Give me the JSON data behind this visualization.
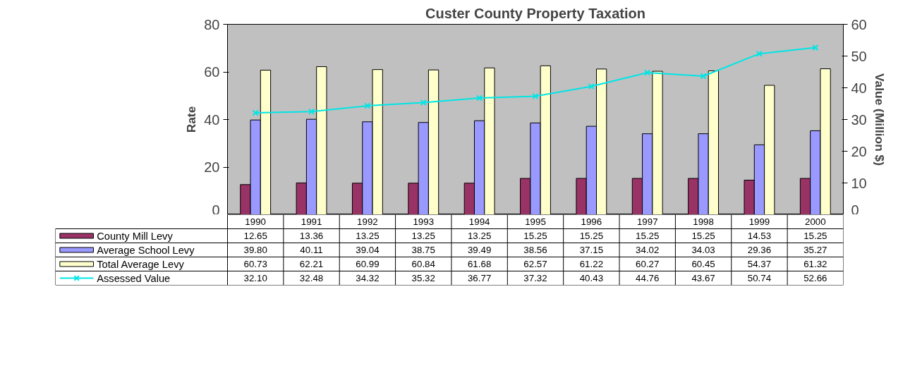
{
  "chart_data": {
    "type": "bar",
    "title": "Custer County Property Taxation",
    "ylabel": "Rate",
    "y2label": "Value (Million $)",
    "categories": [
      "1990",
      "1991",
      "1992",
      "1993",
      "1994",
      "1995",
      "1996",
      "1997",
      "1998",
      "1999",
      "2000"
    ],
    "series": [
      {
        "name": "County Mill Levy",
        "color": "#993366",
        "values": [
          12.65,
          13.36,
          13.25,
          13.25,
          13.25,
          15.25,
          15.25,
          15.25,
          15.25,
          14.53,
          15.25
        ],
        "value_labels": [
          "12.65",
          "13.36",
          "13.25",
          "13.25",
          "13.25",
          "15.25",
          "15.25",
          "15.25",
          "15.25",
          "14.53",
          "15.25"
        ]
      },
      {
        "name": "Average School Levy",
        "color": "#9999ff",
        "values": [
          39.8,
          40.11,
          39.04,
          38.75,
          39.49,
          38.56,
          37.15,
          34.02,
          34.03,
          29.36,
          35.27
        ],
        "value_labels": [
          "39.80",
          "40.11",
          "39.04",
          "38.75",
          "39.49",
          "38.56",
          "37.15",
          "34.02",
          "34.03",
          "29.36",
          "35.27"
        ]
      },
      {
        "name": "Total Average Levy",
        "color": "#ffffcc",
        "values": [
          60.73,
          62.21,
          60.99,
          60.84,
          61.68,
          62.57,
          61.22,
          60.27,
          60.45,
          54.37,
          61.32
        ],
        "value_labels": [
          "60.73",
          "62.21",
          "60.99",
          "60.84",
          "61.68",
          "62.57",
          "61.22",
          "60.27",
          "60.45",
          "54.37",
          "61.32"
        ]
      },
      {
        "name": "Assessed Value",
        "type": "line",
        "axis": "y2",
        "marker": "cross",
        "color": "#00e5e5",
        "values": [
          32.1,
          32.48,
          34.32,
          35.32,
          36.77,
          37.32,
          40.43,
          44.76,
          43.67,
          50.74,
          52.66
        ],
        "value_labels": [
          "32.10",
          "32.48",
          "34.32",
          "35.32",
          "36.77",
          "37.32",
          "40.43",
          "44.76",
          "43.67",
          "50.74",
          "52.66"
        ]
      }
    ],
    "ylim": [
      0,
      80
    ],
    "yticks": [
      0,
      20,
      40,
      60,
      80
    ],
    "y2lim": [
      0,
      60
    ],
    "y2ticks": [
      0,
      10,
      20,
      30,
      40,
      50,
      60
    ],
    "grid": false,
    "legend": "bottom left"
  }
}
